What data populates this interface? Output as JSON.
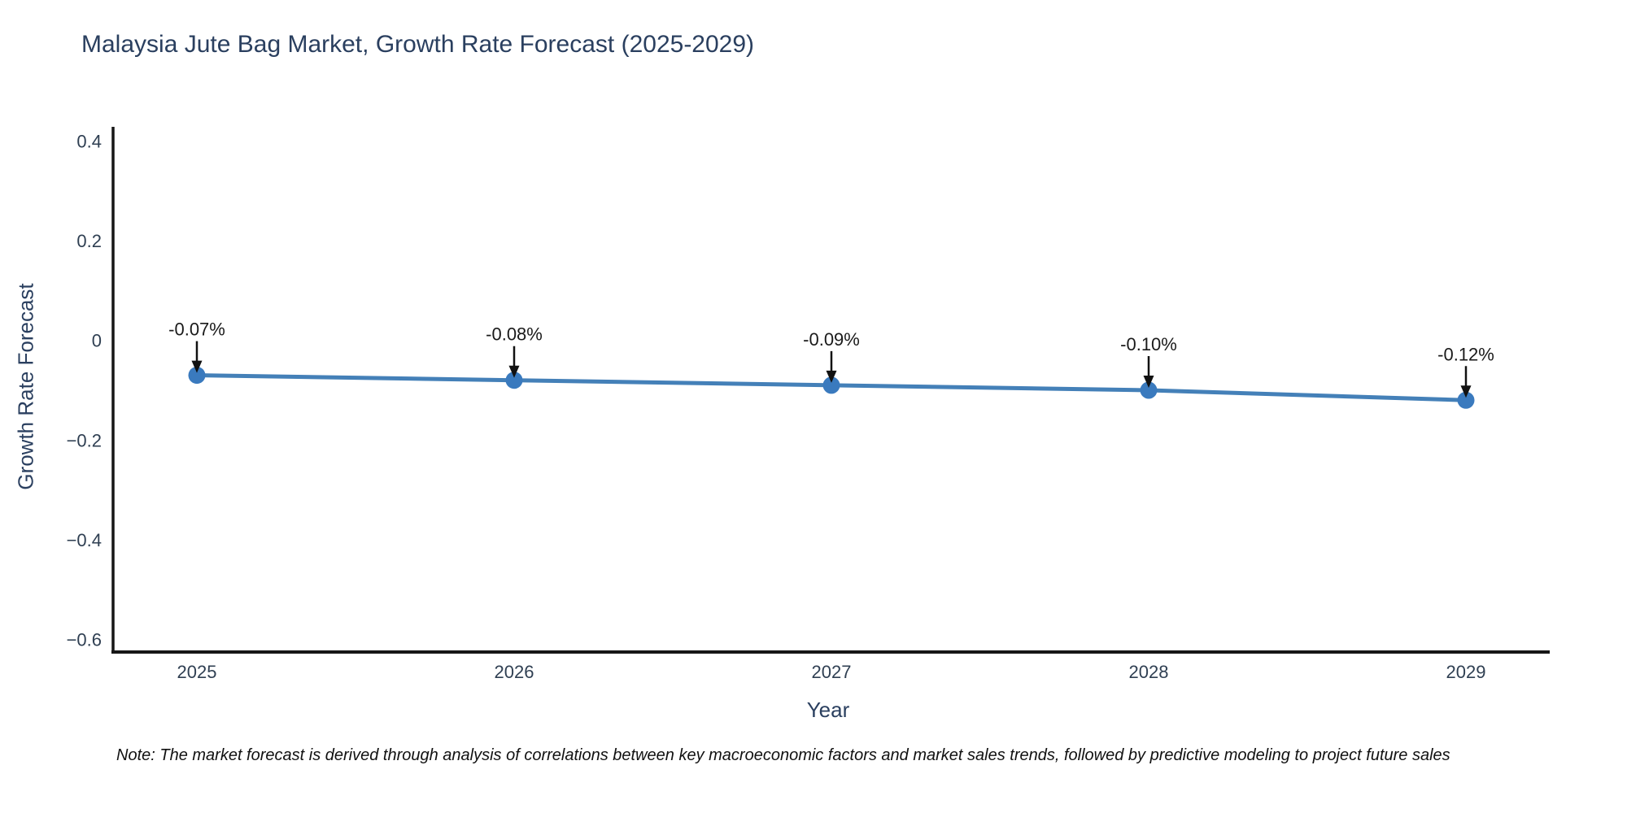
{
  "title": "Malaysia Jute Bag Market, Growth Rate Forecast (2025-2029)",
  "note": "Note: The market forecast is derived through analysis of correlations between key macroeconomic factors and market sales trends, followed by predictive modeling to project future sales",
  "colors": {
    "title_text": "#2a3f5f",
    "tick_text": "#2f3f52",
    "axis_line": "#161616",
    "line": "#4480b8",
    "marker": "#3a7abe",
    "annotation_text": "#1a1a1a",
    "arrow": "#111111",
    "background": "#ffffff"
  },
  "chart_data": {
    "type": "line",
    "title": "Malaysia Jute Bag Market, Growth Rate Forecast (2025-2029)",
    "xlabel": "Year",
    "ylabel": "Growth Rate Forecast",
    "x": [
      2025,
      2026,
      2027,
      2028,
      2029
    ],
    "y": [
      -0.07,
      -0.08,
      -0.09,
      -0.1,
      -0.12
    ],
    "point_labels": [
      "-0.07%",
      "-0.08%",
      "-0.09%",
      "-0.10%",
      "-0.12%"
    ],
    "xticks": [
      "2025",
      "2026",
      "2027",
      "2028",
      "2029"
    ],
    "yticks": {
      "values": [
        0.4,
        0.2,
        0,
        -0.2,
        -0.4,
        -0.6
      ],
      "labels": [
        "0.4",
        "0.2",
        "0",
        "−0.2",
        "−0.4",
        "−0.6"
      ]
    },
    "ylim": [
      -0.625,
      0.425
    ],
    "grid": false,
    "legend": false
  }
}
